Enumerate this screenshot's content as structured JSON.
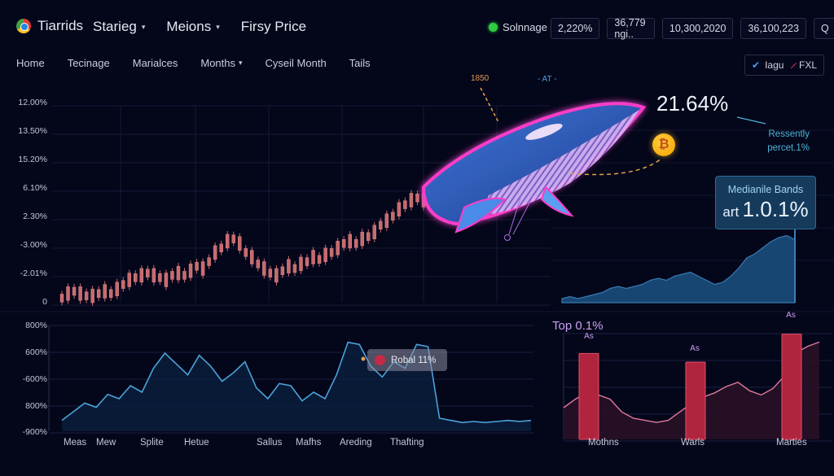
{
  "header": {
    "brand": "Tiarrids",
    "nav": [
      {
        "label": "Starieg",
        "has_caret": true
      },
      {
        "label": "Meions",
        "has_caret": true
      },
      {
        "label": "Firsy Price",
        "has_caret": false
      }
    ],
    "status": {
      "label": "Solnnage",
      "color": "#2ecc40"
    },
    "metrics": [
      "2,220%",
      "36,779 ngi..",
      "10,300,2020",
      "36,100,223"
    ],
    "search_icon": "search-icon",
    "search_label": "Q"
  },
  "subnav": [
    {
      "label": "Home"
    },
    {
      "label": "Tecinage"
    },
    {
      "label": "Marialces"
    },
    {
      "label": "Months",
      "has_caret": true
    },
    {
      "label": "Cyseil Month"
    },
    {
      "label": "Tails"
    }
  ],
  "legend": {
    "items": [
      {
        "label": "Iagu",
        "icon": "check-icon",
        "color": "#3aa0ff"
      },
      {
        "label": "FXL",
        "icon": "diamond-icon",
        "color": "#e0304a"
      }
    ]
  },
  "annotations": {
    "big_percent": "21.64%",
    "recent_note_line1": "Ressently",
    "recent_note_line2": "percet.1%",
    "label_1850": "1850",
    "label_at": "- AT -",
    "bitcoin_icon": "bitcoin-icon",
    "bitcoin_symbol": "₿",
    "median_card": {
      "title": "Medianile Bands",
      "prefix": "art",
      "value": "1.0.1%"
    }
  },
  "tooltip": {
    "label": "Robal 11%",
    "color": "#c42a45"
  },
  "top_chart": {
    "title": "Top 0.1%"
  },
  "colors": {
    "background": "#04061a",
    "candle": "#c96a6e",
    "line_blue": "#4aa3d8",
    "area_blue": "#1a4a78",
    "whale_glow": "#ff3cc8",
    "bar_red": "#b0243e",
    "bar_line": "#e07a9a"
  },
  "chart_data": [
    {
      "type": "bar",
      "subtype": "candlestick",
      "title": "",
      "ylabel": "",
      "y_tick_labels": [
        "12.00%",
        "13.50%",
        "15.20%",
        "6.10%",
        "2.30%",
        "-3.00%",
        "-2.01%",
        "0"
      ],
      "grid": true,
      "description": "Red candlestick series rising from bottom-left to a peak near the whale image",
      "values": [
        2,
        4,
        5,
        4,
        3,
        3,
        4,
        5,
        4,
        6,
        8,
        10,
        11,
        12,
        13,
        12,
        11,
        10,
        12,
        13,
        12,
        14,
        16,
        15,
        18,
        22,
        24,
        27,
        28,
        26,
        22,
        20,
        17,
        15,
        13,
        12,
        14,
        16,
        15,
        17,
        18,
        20,
        19,
        21,
        22,
        24,
        26,
        27,
        26,
        28,
        29,
        31,
        34,
        36,
        38,
        41,
        43,
        45,
        46,
        45
      ]
    },
    {
      "type": "area",
      "title": "Medianile Bands",
      "description": "Blue area chart on right, rising toward the right edge",
      "values": [
        2,
        3,
        2,
        3,
        4,
        5,
        7,
        8,
        7,
        8,
        9,
        11,
        12,
        11,
        13,
        14,
        15,
        13,
        11,
        9,
        10,
        13,
        17,
        22,
        24,
        27,
        30,
        32,
        33,
        31
      ]
    },
    {
      "type": "line",
      "title": "",
      "y_tick_labels": [
        "800%",
        "600%",
        "-600%",
        "800%",
        "-900%"
      ],
      "categories": [
        "Meas",
        "Mew",
        "Splite",
        "Hetue",
        "Sallus",
        "Mafhs",
        "Areding",
        "Thafting"
      ],
      "grid": true,
      "values": [
        10,
        18,
        26,
        22,
        34,
        30,
        42,
        36,
        58,
        72,
        62,
        52,
        70,
        60,
        46,
        54,
        64,
        40,
        30,
        44,
        42,
        28,
        36,
        30,
        52,
        82,
        80,
        60,
        50,
        64,
        58,
        80,
        78,
        12,
        10,
        8,
        9,
        8,
        9,
        10,
        9,
        10
      ],
      "annotation": "Robal 11%"
    },
    {
      "type": "bar",
      "title": "Top 0.1%",
      "categories": [
        "Mothns",
        "Warls",
        "Marties"
      ],
      "bar_labels": [
        "As",
        "As",
        "As"
      ],
      "values": [
        80,
        72,
        98
      ],
      "overlay_line": [
        30,
        38,
        44,
        42,
        38,
        26,
        20,
        18,
        16,
        18,
        26,
        34,
        40,
        44,
        50,
        54,
        46,
        42,
        48,
        60,
        82,
        88,
        92
      ],
      "grid": true
    }
  ]
}
